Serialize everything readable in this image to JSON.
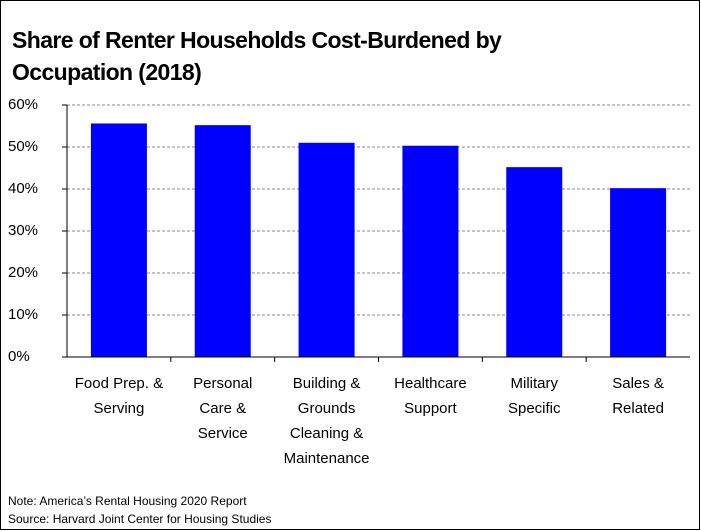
{
  "chart_data": {
    "type": "bar",
    "title_lines": [
      "Share of Renter Households Cost-Burdened by",
      "Occupation (2018)"
    ],
    "categories": [
      [
        "Food Prep. &",
        "Serving"
      ],
      [
        "Personal",
        "Care &",
        "Service"
      ],
      [
        "Building &",
        "Grounds",
        "Cleaning &",
        "Maintenance"
      ],
      [
        "Healthcare",
        "Support"
      ],
      [
        "Military",
        "Specific"
      ],
      [
        "Sales &",
        "Related"
      ]
    ],
    "values": [
      55.6,
      55.2,
      51,
      50.3,
      45.2,
      40.2
    ],
    "color": "#0000ff",
    "ylim": [
      0,
      60
    ],
    "yticks": [
      {
        "value": 0,
        "label": "0%"
      },
      {
        "value": 10,
        "label": "10%"
      },
      {
        "value": 20,
        "label": "20%"
      },
      {
        "value": 30,
        "label": "30%"
      },
      {
        "value": 40,
        "label": "40%"
      },
      {
        "value": 50,
        "label": "50%"
      },
      {
        "value": 60,
        "label": "60%"
      }
    ],
    "grid": true,
    "notes": [
      "Note: America’s Rental Housing 2020 Report",
      "Source: Harvard Joint Center for Housing Studies"
    ]
  }
}
